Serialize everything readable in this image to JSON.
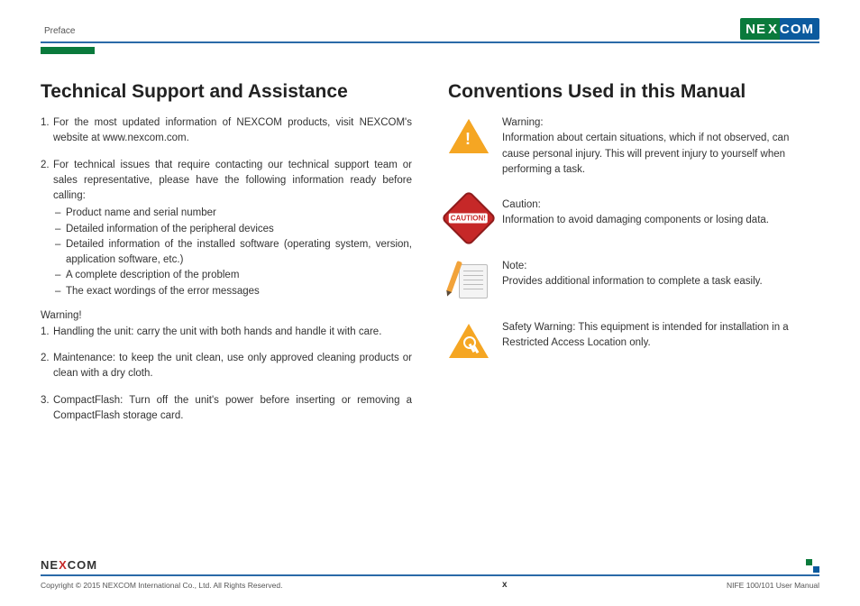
{
  "header": {
    "section": "Preface",
    "logo_text_left": "NE",
    "logo_text_x": "X",
    "logo_text_right": "COM"
  },
  "left": {
    "title": "Technical Support and Assistance",
    "items": [
      "For the most updated information of NEXCOM products, visit NEXCOM's website at www.nexcom.com.",
      "For technical issues that require contacting our technical support team or sales representative, please have the following information ready before calling:"
    ],
    "subitems": [
      "Product name and serial number",
      "Detailed information of the peripheral devices",
      "Detailed information of the installed software (operating system, version, application software, etc.)",
      "A complete description of the problem",
      "The exact wordings of the error messages"
    ],
    "warning_label": "Warning!",
    "warnings": [
      "Handling the unit: carry the unit with both hands and handle it with care.",
      "Maintenance: to keep the unit clean, use only approved cleaning products or clean with a dry cloth.",
      "CompactFlash: Turn off the unit's power before inserting or removing a CompactFlash storage card."
    ]
  },
  "right": {
    "title": "Conventions Used in this Manual",
    "rows": [
      {
        "icon": "warning-icon",
        "title": "Warning:",
        "text": "Information about certain situations, which if not observed, can cause personal injury. This will prevent injury to yourself when performing a task."
      },
      {
        "icon": "caution-icon",
        "title": "Caution:",
        "text": "Information to avoid damaging components or losing data."
      },
      {
        "icon": "note-icon",
        "title": "Note:",
        "text": "Provides additional information to complete a task easily."
      },
      {
        "icon": "safety-icon",
        "title": "",
        "text": "Safety Warning: This equipment is intended for installation in a Restricted Access Location only."
      }
    ]
  },
  "footer": {
    "copyright": "Copyright © 2015 NEXCOM International Co., Ltd. All Rights Reserved.",
    "page": "x",
    "doc": "NIFE 100/101 User Manual"
  }
}
